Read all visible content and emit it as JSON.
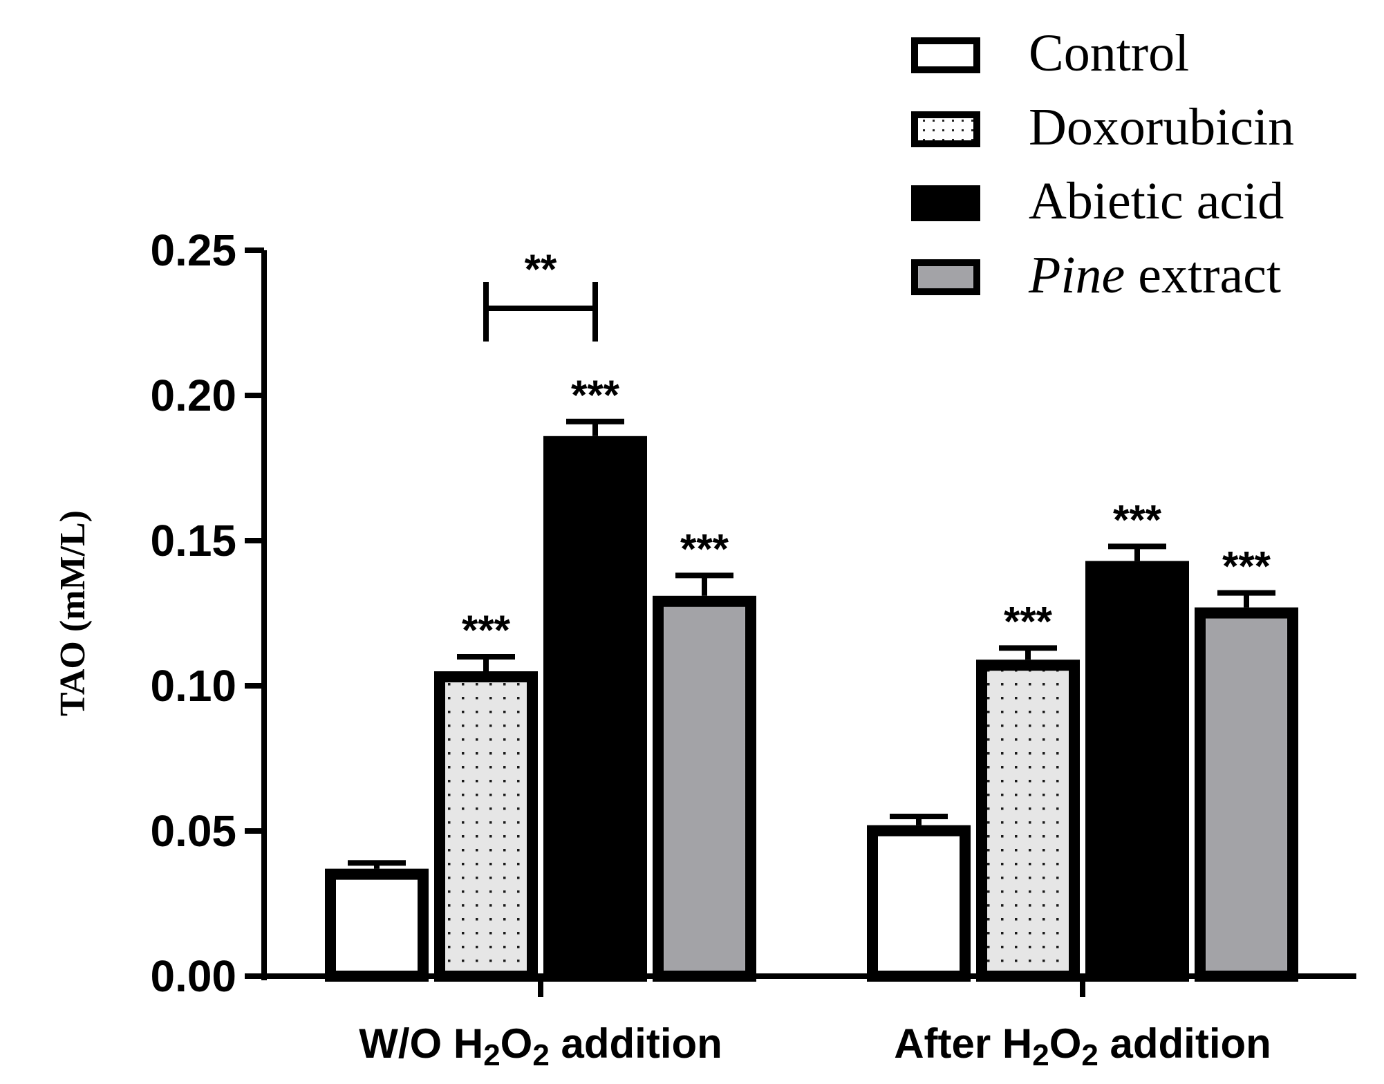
{
  "chart_data": {
    "type": "bar",
    "ylabel": "TAO (mM/L)",
    "ylim": [
      0,
      0.25
    ],
    "yticks": [
      "0.00",
      "0.05",
      "0.10",
      "0.15",
      "0.20",
      "0.25"
    ],
    "categories": [
      {
        "pre": "W/O H",
        "sub1": "2",
        "mid": "O",
        "sub2": "2",
        "post": " addition"
      },
      {
        "pre": "After H",
        "sub1": "2",
        "mid": "O",
        "sub2": "2",
        "post": " addition"
      }
    ],
    "legend": {
      "position": "top-right"
    },
    "series": [
      {
        "name": "Control",
        "italic_part": "",
        "pattern": "white",
        "values": [
          0.037,
          0.052
        ],
        "errors": [
          0.002,
          0.003
        ],
        "stars": [
          "",
          ""
        ]
      },
      {
        "name": "Doxorubicin",
        "italic_part": "",
        "pattern": "dotted",
        "values": [
          0.105,
          0.109
        ],
        "errors": [
          0.005,
          0.004
        ],
        "stars": [
          "***",
          "***"
        ]
      },
      {
        "name": "Abietic acid",
        "italic_part": "",
        "pattern": "black",
        "values": [
          0.186,
          0.143
        ],
        "errors": [
          0.005,
          0.005
        ],
        "stars": [
          "***",
          "***"
        ]
      },
      {
        "name": " extract",
        "italic_part": "Pine",
        "pattern": "gray",
        "values": [
          0.131,
          0.127
        ],
        "errors": [
          0.007,
          0.005
        ],
        "stars": [
          "***",
          "***"
        ]
      }
    ],
    "bracket": {
      "from_series": 1,
      "to_series": 2,
      "category": 0,
      "value": 0.23,
      "label": "**"
    },
    "colors": {
      "black": "#000000",
      "gray": "#a3a3a7",
      "dot_bg": "#e6e6e6",
      "white": "#ffffff"
    }
  }
}
